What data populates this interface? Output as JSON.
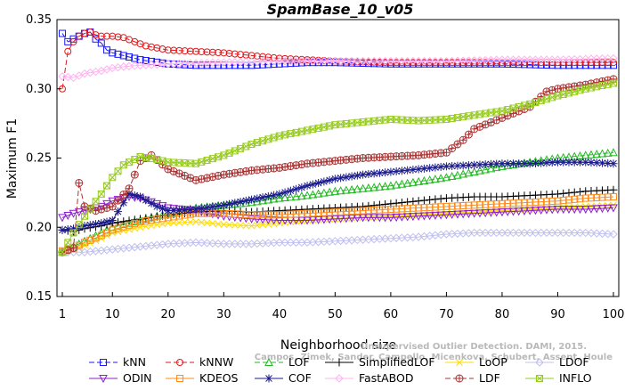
{
  "chart_data": {
    "type": "line",
    "title": "SpamBase_10_v05",
    "xlabel": "Neighborhood size",
    "ylabel": "Maximum F1",
    "xlim": [
      1,
      100
    ],
    "ylim": [
      0.15,
      0.35
    ],
    "xticks": [
      1,
      10,
      20,
      30,
      40,
      50,
      60,
      70,
      80,
      90,
      100
    ],
    "yticks": [
      0.15,
      0.2,
      0.25,
      0.3,
      0.35
    ],
    "xtick_labels": [
      "1",
      "10",
      "20",
      "30",
      "40",
      "50",
      "60",
      "70",
      "80",
      "90",
      "100"
    ],
    "ytick_labels": [
      "0.15",
      "0.20",
      "0.25",
      "0.30",
      "0.35"
    ],
    "grid": false,
    "legend_position": "bottom",
    "watermark_lines": [
      "Unsupervised Outlier Detection. DAMI, 2015.",
      "Campos, Zimek, Sander, Campello, Micenkova, Schubert, Assent, Houle"
    ],
    "series": [
      {
        "name": "kNN",
        "color": "#1a1aff",
        "marker": "square",
        "dash": "6,3",
        "points": [
          [
            1,
            0.34
          ],
          [
            2,
            0.334
          ],
          [
            3,
            0.336
          ],
          [
            4,
            0.338
          ],
          [
            5,
            0.34
          ],
          [
            6,
            0.341
          ],
          [
            7,
            0.336
          ],
          [
            8,
            0.333
          ],
          [
            9,
            0.328
          ],
          [
            10,
            0.326
          ],
          [
            12,
            0.324
          ],
          [
            15,
            0.321
          ],
          [
            20,
            0.318
          ],
          [
            25,
            0.317
          ],
          [
            30,
            0.317
          ],
          [
            35,
            0.317
          ],
          [
            40,
            0.318
          ],
          [
            45,
            0.319
          ],
          [
            50,
            0.319
          ],
          [
            60,
            0.318
          ],
          [
            70,
            0.318
          ],
          [
            80,
            0.318
          ],
          [
            90,
            0.317
          ],
          [
            100,
            0.317
          ]
        ]
      },
      {
        "name": "kNNW",
        "color": "#e31a1c",
        "marker": "circle",
        "dash": "6,3",
        "points": [
          [
            1,
            0.3
          ],
          [
            2,
            0.327
          ],
          [
            3,
            0.334
          ],
          [
            4,
            0.338
          ],
          [
            5,
            0.34
          ],
          [
            6,
            0.341
          ],
          [
            7,
            0.339
          ],
          [
            8,
            0.338
          ],
          [
            10,
            0.338
          ],
          [
            12,
            0.337
          ],
          [
            14,
            0.334
          ],
          [
            16,
            0.331
          ],
          [
            20,
            0.328
          ],
          [
            25,
            0.327
          ],
          [
            30,
            0.326
          ],
          [
            35,
            0.324
          ],
          [
            40,
            0.322
          ],
          [
            45,
            0.321
          ],
          [
            50,
            0.32
          ],
          [
            60,
            0.319
          ],
          [
            70,
            0.319
          ],
          [
            80,
            0.319
          ],
          [
            90,
            0.319
          ],
          [
            100,
            0.319
          ]
        ]
      },
      {
        "name": "LOF",
        "color": "#22bb22",
        "marker": "triangle",
        "dash": "6,3",
        "points": [
          [
            1,
            0.182
          ],
          [
            3,
            0.186
          ],
          [
            5,
            0.19
          ],
          [
            8,
            0.196
          ],
          [
            10,
            0.2
          ],
          [
            15,
            0.205
          ],
          [
            20,
            0.21
          ],
          [
            25,
            0.214
          ],
          [
            30,
            0.216
          ],
          [
            35,
            0.218
          ],
          [
            40,
            0.221
          ],
          [
            45,
            0.223
          ],
          [
            50,
            0.226
          ],
          [
            55,
            0.228
          ],
          [
            60,
            0.23
          ],
          [
            65,
            0.233
          ],
          [
            70,
            0.236
          ],
          [
            75,
            0.24
          ],
          [
            80,
            0.244
          ],
          [
            85,
            0.247
          ],
          [
            90,
            0.25
          ],
          [
            95,
            0.252
          ],
          [
            100,
            0.254
          ]
        ]
      },
      {
        "name": "SimplifiedLOF",
        "color": "#000000",
        "marker": "plus",
        "dash": "",
        "points": [
          [
            1,
            0.198
          ],
          [
            3,
            0.197
          ],
          [
            5,
            0.199
          ],
          [
            8,
            0.201
          ],
          [
            10,
            0.203
          ],
          [
            15,
            0.206
          ],
          [
            20,
            0.209
          ],
          [
            25,
            0.211
          ],
          [
            30,
            0.212
          ],
          [
            35,
            0.211
          ],
          [
            40,
            0.212
          ],
          [
            45,
            0.213
          ],
          [
            50,
            0.214
          ],
          [
            55,
            0.215
          ],
          [
            60,
            0.217
          ],
          [
            65,
            0.219
          ],
          [
            70,
            0.221
          ],
          [
            75,
            0.222
          ],
          [
            80,
            0.222
          ],
          [
            85,
            0.223
          ],
          [
            90,
            0.224
          ],
          [
            95,
            0.226
          ],
          [
            100,
            0.227
          ]
        ]
      },
      {
        "name": "LoOP",
        "color": "#ffdd00",
        "marker": "cross",
        "dash": "",
        "points": [
          [
            1,
            0.183
          ],
          [
            3,
            0.184
          ],
          [
            5,
            0.187
          ],
          [
            8,
            0.192
          ],
          [
            10,
            0.196
          ],
          [
            15,
            0.2
          ],
          [
            20,
            0.203
          ],
          [
            25,
            0.204
          ],
          [
            30,
            0.202
          ],
          [
            35,
            0.201
          ],
          [
            40,
            0.203
          ],
          [
            45,
            0.205
          ],
          [
            50,
            0.206
          ],
          [
            55,
            0.207
          ],
          [
            60,
            0.208
          ],
          [
            65,
            0.209
          ],
          [
            70,
            0.21
          ],
          [
            75,
            0.211
          ],
          [
            80,
            0.212
          ],
          [
            85,
            0.213
          ],
          [
            90,
            0.214
          ],
          [
            95,
            0.215
          ],
          [
            100,
            0.216
          ]
        ]
      },
      {
        "name": "LDOF",
        "color": "#c0c0ee",
        "marker": "diamond",
        "dash": "",
        "points": [
          [
            1,
            0.182
          ],
          [
            5,
            0.182
          ],
          [
            10,
            0.184
          ],
          [
            15,
            0.186
          ],
          [
            20,
            0.188
          ],
          [
            25,
            0.189
          ],
          [
            30,
            0.188
          ],
          [
            35,
            0.188
          ],
          [
            40,
            0.189
          ],
          [
            45,
            0.189
          ],
          [
            50,
            0.19
          ],
          [
            55,
            0.191
          ],
          [
            60,
            0.192
          ],
          [
            65,
            0.193
          ],
          [
            70,
            0.195
          ],
          [
            75,
            0.196
          ],
          [
            80,
            0.196
          ],
          [
            85,
            0.196
          ],
          [
            90,
            0.196
          ],
          [
            95,
            0.196
          ],
          [
            100,
            0.195
          ]
        ]
      },
      {
        "name": "ODIN",
        "color": "#8b1fcf",
        "marker": "tri-down",
        "dash": "",
        "points": [
          [
            1,
            0.207
          ],
          [
            3,
            0.21
          ],
          [
            5,
            0.212
          ],
          [
            8,
            0.215
          ],
          [
            10,
            0.219
          ],
          [
            13,
            0.222
          ],
          [
            15,
            0.221
          ],
          [
            18,
            0.217
          ],
          [
            20,
            0.214
          ],
          [
            25,
            0.212
          ],
          [
            30,
            0.208
          ],
          [
            35,
            0.206
          ],
          [
            40,
            0.205
          ],
          [
            45,
            0.205
          ],
          [
            50,
            0.206
          ],
          [
            55,
            0.207
          ],
          [
            60,
            0.207
          ],
          [
            65,
            0.208
          ],
          [
            70,
            0.209
          ],
          [
            75,
            0.21
          ],
          [
            80,
            0.211
          ],
          [
            85,
            0.212
          ],
          [
            90,
            0.213
          ],
          [
            95,
            0.213
          ],
          [
            100,
            0.214
          ]
        ]
      },
      {
        "name": "KDEOS",
        "color": "#ff8c1a",
        "marker": "square",
        "dash": "",
        "points": [
          [
            1,
            0.183
          ],
          [
            3,
            0.185
          ],
          [
            5,
            0.189
          ],
          [
            8,
            0.194
          ],
          [
            10,
            0.198
          ],
          [
            15,
            0.204
          ],
          [
            20,
            0.207
          ],
          [
            25,
            0.21
          ],
          [
            30,
            0.21
          ],
          [
            35,
            0.209
          ],
          [
            40,
            0.209
          ],
          [
            45,
            0.21
          ],
          [
            50,
            0.211
          ],
          [
            55,
            0.212
          ],
          [
            60,
            0.213
          ],
          [
            65,
            0.214
          ],
          [
            70,
            0.215
          ],
          [
            75,
            0.216
          ],
          [
            80,
            0.217
          ],
          [
            85,
            0.218
          ],
          [
            90,
            0.219
          ],
          [
            95,
            0.221
          ],
          [
            100,
            0.222
          ]
        ]
      },
      {
        "name": "COF",
        "color": "#1a1a8c",
        "marker": "star",
        "dash": "",
        "points": [
          [
            1,
            0.198
          ],
          [
            3,
            0.199
          ],
          [
            5,
            0.201
          ],
          [
            8,
            0.203
          ],
          [
            10,
            0.205
          ],
          [
            13,
            0.224
          ],
          [
            15,
            0.222
          ],
          [
            18,
            0.215
          ],
          [
            20,
            0.212
          ],
          [
            25,
            0.213
          ],
          [
            30,
            0.216
          ],
          [
            35,
            0.22
          ],
          [
            40,
            0.224
          ],
          [
            45,
            0.23
          ],
          [
            50,
            0.235
          ],
          [
            55,
            0.238
          ],
          [
            60,
            0.24
          ],
          [
            65,
            0.242
          ],
          [
            70,
            0.244
          ],
          [
            75,
            0.245
          ],
          [
            80,
            0.246
          ],
          [
            85,
            0.246
          ],
          [
            90,
            0.247
          ],
          [
            95,
            0.247
          ],
          [
            100,
            0.246
          ]
        ]
      },
      {
        "name": "FastABOD",
        "color": "#ffb3f0",
        "marker": "diamond",
        "dash": "",
        "points": [
          [
            1,
            0.309
          ],
          [
            3,
            0.308
          ],
          [
            5,
            0.311
          ],
          [
            8,
            0.313
          ],
          [
            10,
            0.315
          ],
          [
            12,
            0.316
          ],
          [
            15,
            0.317
          ],
          [
            20,
            0.318
          ],
          [
            30,
            0.319
          ],
          [
            40,
            0.32
          ],
          [
            50,
            0.32
          ],
          [
            60,
            0.32
          ],
          [
            70,
            0.32
          ],
          [
            80,
            0.321
          ],
          [
            90,
            0.321
          ],
          [
            100,
            0.322
          ]
        ]
      },
      {
        "name": "LDF",
        "color": "#aa3333",
        "marker": "circle-plus",
        "dash": "6,3",
        "points": [
          [
            1,
            0.182
          ],
          [
            3,
            0.185
          ],
          [
            4,
            0.232
          ],
          [
            5,
            0.215
          ],
          [
            7,
            0.212
          ],
          [
            10,
            0.215
          ],
          [
            13,
            0.228
          ],
          [
            15,
            0.248
          ],
          [
            17,
            0.252
          ],
          [
            20,
            0.242
          ],
          [
            25,
            0.234
          ],
          [
            30,
            0.238
          ],
          [
            35,
            0.241
          ],
          [
            40,
            0.243
          ],
          [
            45,
            0.246
          ],
          [
            50,
            0.248
          ],
          [
            55,
            0.25
          ],
          [
            60,
            0.251
          ],
          [
            65,
            0.252
          ],
          [
            70,
            0.254
          ],
          [
            73,
            0.263
          ],
          [
            75,
            0.271
          ],
          [
            80,
            0.279
          ],
          [
            85,
            0.287
          ],
          [
            88,
            0.298
          ],
          [
            90,
            0.3
          ],
          [
            95,
            0.303
          ],
          [
            100,
            0.307
          ]
        ]
      },
      {
        "name": "INFLO",
        "color": "#99cc22",
        "marker": "x-square",
        "dash": "",
        "points": [
          [
            1,
            0.182
          ],
          [
            3,
            0.196
          ],
          [
            5,
            0.208
          ],
          [
            8,
            0.224
          ],
          [
            10,
            0.236
          ],
          [
            12,
            0.245
          ],
          [
            15,
            0.251
          ],
          [
            18,
            0.249
          ],
          [
            20,
            0.247
          ],
          [
            25,
            0.246
          ],
          [
            30,
            0.252
          ],
          [
            35,
            0.26
          ],
          [
            40,
            0.266
          ],
          [
            45,
            0.27
          ],
          [
            50,
            0.274
          ],
          [
            55,
            0.276
          ],
          [
            60,
            0.278
          ],
          [
            65,
            0.277
          ],
          [
            70,
            0.278
          ],
          [
            75,
            0.281
          ],
          [
            80,
            0.284
          ],
          [
            85,
            0.289
          ],
          [
            90,
            0.295
          ],
          [
            95,
            0.3
          ],
          [
            100,
            0.304
          ]
        ]
      }
    ]
  }
}
